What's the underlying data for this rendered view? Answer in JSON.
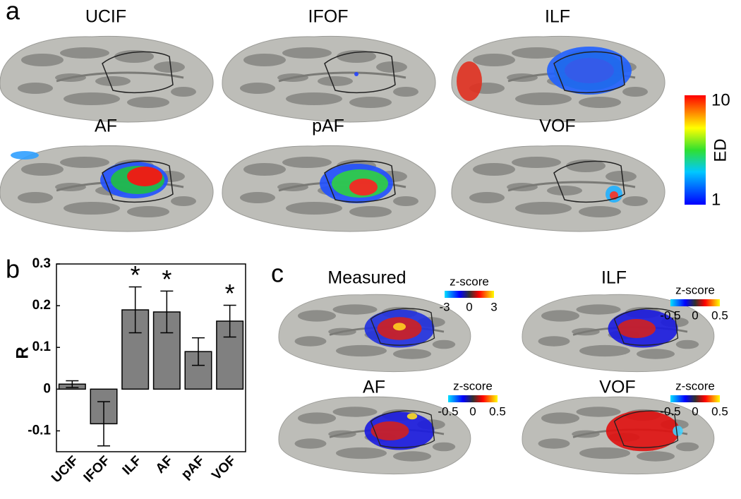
{
  "panel_labels": [
    "a",
    "b",
    "c"
  ],
  "panel_a": {
    "brains": [
      "UCIF",
      "IFOF",
      "ILF",
      "AF",
      "pAF",
      "VOF"
    ],
    "colorbar": {
      "max": 10,
      "min": 1,
      "label": "ED"
    }
  },
  "panel_c": {
    "brains": [
      {
        "title": "Measured",
        "colorbar_label": "z-score",
        "ticks": [
          -3,
          0,
          3
        ]
      },
      {
        "title": "ILF",
        "colorbar_label": "z-score",
        "ticks": [
          -0.5,
          0,
          0.5
        ]
      },
      {
        "title": "AF",
        "colorbar_label": "z-score",
        "ticks": [
          -0.5,
          0,
          0.5
        ]
      },
      {
        "title": "VOF",
        "colorbar_label": "z-score",
        "ticks": [
          -0.5,
          0,
          0.5
        ]
      }
    ]
  },
  "chart_data": {
    "type": "bar",
    "y_label": "R",
    "categories": [
      "UCIF",
      "IFOF",
      "ILF",
      "AF",
      "pAF",
      "VOF"
    ],
    "values": [
      0.012,
      -0.083,
      0.19,
      0.185,
      0.09,
      0.163
    ],
    "errors": [
      0.008,
      0.053,
      0.055,
      0.05,
      0.033,
      0.038
    ],
    "significance": [
      null,
      null,
      "*",
      "*",
      null,
      "*"
    ],
    "color": "#808080",
    "ylim": [
      -0.15,
      0.3
    ],
    "yticks": [
      -0.1,
      0,
      0.1,
      0.2,
      0.3
    ]
  }
}
